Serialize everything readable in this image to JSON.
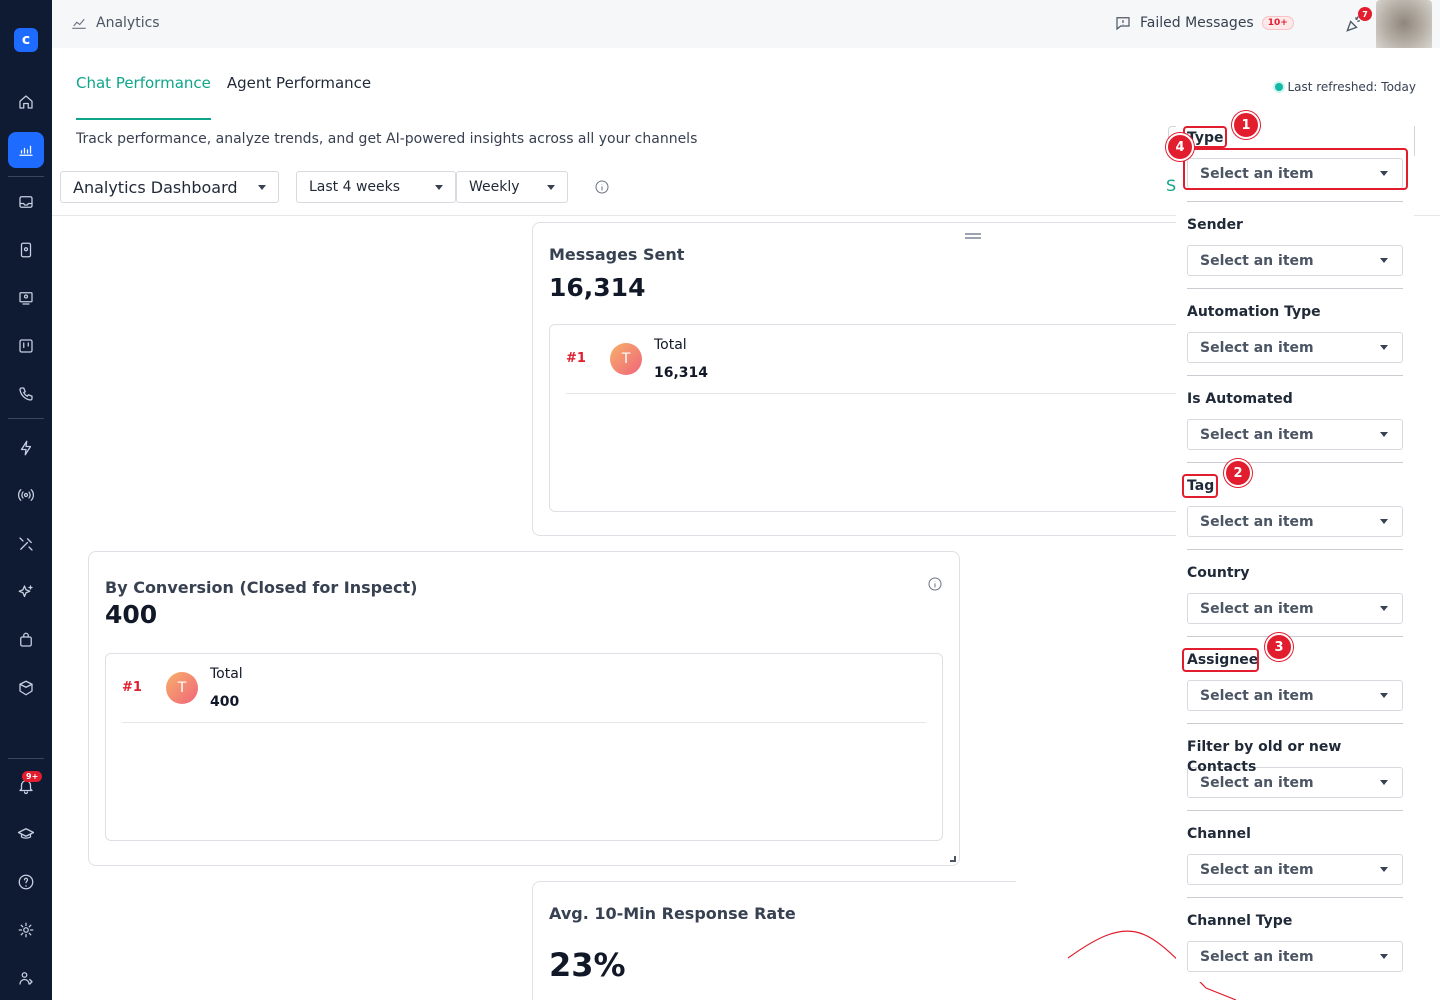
{
  "topbar": {
    "title": "Analytics",
    "failed_label": "Failed Messages",
    "failed_badge": "10+",
    "party_badge": "7"
  },
  "sidebar": {
    "notification_badge": "9+",
    "icons": [
      "home-icon",
      "analytics-icon",
      "inbox-icon",
      "contacts-icon",
      "broadcast-icon",
      "board-icon",
      "phone-icon",
      "bolt-icon",
      "signal-icon",
      "tools-icon",
      "sparkle-icon",
      "bag-icon",
      "package-icon",
      "bell-icon",
      "graduation-icon",
      "help-icon",
      "gear-icon",
      "user-settings-icon"
    ]
  },
  "tabs": [
    {
      "label": "Chat Performance",
      "active": true
    },
    {
      "label": "Agent Performance",
      "active": false
    }
  ],
  "last_refreshed": "Last refreshed: Today",
  "subtitle": "Track performance, analyze trends, and get AI-powered insights across all your channels",
  "selectors": {
    "dashboard": "Analytics Dashboard",
    "range": "Last 4 weeks",
    "interval": "Weekly"
  },
  "partial_text": "S",
  "cards": {
    "messages_sent": {
      "title": "Messages Sent",
      "value": "16,314",
      "rank": "#1",
      "initial": "T",
      "item_label": "Total",
      "item_value": "16,314"
    },
    "conversion": {
      "title": "By Conversion (Closed for Inspect)",
      "value": "400",
      "rank": "#1",
      "initial": "T",
      "item_label": "Total",
      "item_value": "400"
    },
    "response_rate": {
      "title": "Avg. 10-Min Response Rate",
      "value": "23%"
    }
  },
  "filters": [
    {
      "label": "Type",
      "placeholder": "Select an item"
    },
    {
      "label": "Sender",
      "placeholder": "Select an item"
    },
    {
      "label": "Automation Type",
      "placeholder": "Select an item"
    },
    {
      "label": "Is Automated",
      "placeholder": "Select an item"
    },
    {
      "label": "Tag",
      "placeholder": "Select an item"
    },
    {
      "label": "Country",
      "placeholder": "Select an item"
    },
    {
      "label": "Assignee",
      "placeholder": "Select an item"
    },
    {
      "label": "Filter by old or new Contacts",
      "placeholder": "Select an item"
    },
    {
      "label": "Channel",
      "placeholder": "Select an item"
    },
    {
      "label": "Channel Type",
      "placeholder": "Select an item"
    }
  ],
  "annotations": [
    "1",
    "2",
    "3",
    "4"
  ],
  "colors": {
    "accent": "#0ea58a",
    "sidebar": "#0f1a33",
    "primary": "#1d6bff",
    "highlight": "#e11d2e"
  }
}
